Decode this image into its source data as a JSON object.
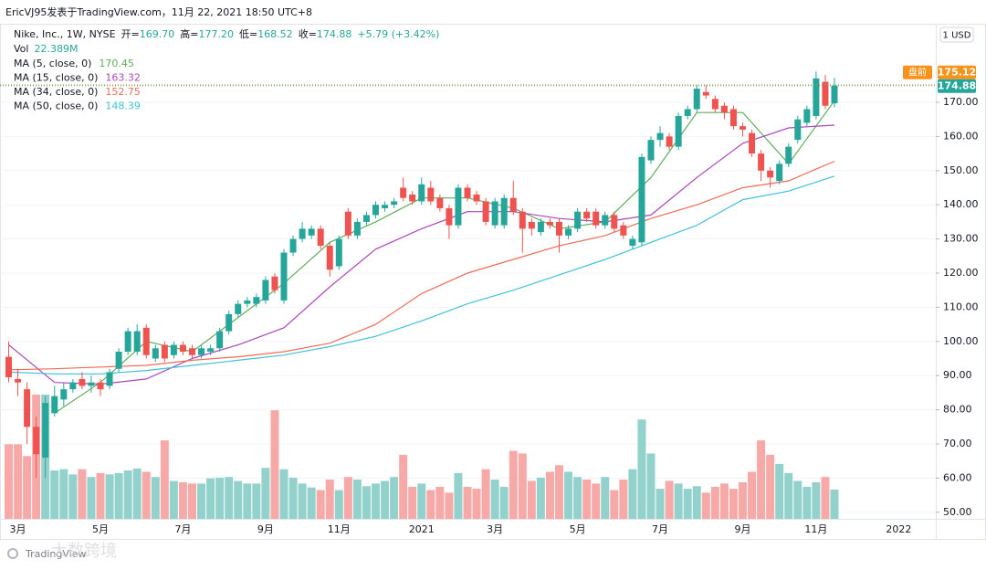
{
  "chart_data": {
    "type": "candlestick",
    "author_line": "EricVJ95发表于TradingView.com，11月 22, 2021 18:50 UTC+8",
    "symbol": "Nike, Inc., 1W, NYSE",
    "ohlc_legend": [
      {
        "label": "开=",
        "value": "169.70"
      },
      {
        "label": "高=",
        "value": "177.20"
      },
      {
        "label": "低=",
        "value": "168.52"
      },
      {
        "label": "收=",
        "value": "174.88"
      }
    ],
    "change": "+5.79 (+3.42%)",
    "volume_name": "Vol",
    "volume_label": "22.389M",
    "currency": "1 USD",
    "premarket_label": "盘前",
    "premarket_price": 175.12,
    "premarket_color": "#f7931a",
    "logo": "TradingView",
    "watermark": "大数跨境",
    "up_color": "#26a69a",
    "down_color": "#ef5350",
    "up_volume_color": "#93d2cc",
    "down_volume_color": "#f7a9a7",
    "grid": true,
    "categories": [
      null,
      "3月",
      null,
      null,
      null,
      null,
      null,
      null,
      null,
      null,
      "5月",
      null,
      null,
      null,
      null,
      null,
      null,
      null,
      null,
      "7月",
      null,
      null,
      null,
      null,
      null,
      null,
      null,
      null,
      "9月",
      null,
      null,
      null,
      null,
      null,
      null,
      null,
      "11月",
      null,
      null,
      null,
      null,
      null,
      null,
      null,
      null,
      "2021",
      null,
      null,
      null,
      null,
      null,
      null,
      null,
      "3月",
      null,
      null,
      null,
      null,
      null,
      null,
      null,
      null,
      "5月",
      null,
      null,
      null,
      null,
      null,
      null,
      null,
      null,
      "7月",
      null,
      null,
      null,
      null,
      null,
      null,
      null,
      null,
      "9月",
      null,
      null,
      null,
      null,
      null,
      null,
      null,
      "11月",
      null,
      null,
      null,
      null,
      null,
      null,
      null,
      null,
      "2022"
    ],
    "open": [
      95.5,
      89,
      86,
      75,
      66,
      79,
      83,
      86,
      89,
      87,
      88,
      87,
      92,
      97,
      97,
      104,
      95,
      99,
      96,
      99,
      98,
      96,
      97,
      98,
      103,
      108,
      111,
      111,
      112,
      119,
      112,
      126,
      130,
      131,
      133,
      128,
      122,
      138,
      131,
      135,
      137,
      139,
      140,
      145,
      143,
      141,
      145,
      142,
      139,
      134,
      145,
      143,
      141,
      134,
      134,
      142,
      138,
      135,
      132,
      135,
      135,
      131,
      133,
      138,
      138,
      134,
      137,
      134,
      128,
      129,
      153,
      159,
      160,
      157,
      166,
      168,
      173,
      171,
      169,
      168,
      163,
      161,
      155,
      150,
      147,
      152,
      159,
      164,
      166,
      176,
      169.7,
      null,
      null,
      null,
      null,
      null,
      null,
      null
    ],
    "high": [
      100,
      92,
      88,
      78,
      84,
      87,
      88,
      89,
      91,
      90,
      89,
      92,
      98,
      104,
      105,
      105,
      99,
      100,
      100,
      100,
      99,
      99,
      99,
      104,
      109,
      112,
      113,
      114,
      119,
      120,
      127,
      131,
      135,
      134,
      134,
      129,
      131,
      139,
      136,
      138,
      141,
      141,
      142,
      148,
      144,
      148,
      147,
      143,
      140,
      146,
      146,
      144,
      142,
      142,
      143,
      147,
      139,
      136,
      136,
      136,
      136,
      134,
      139,
      139,
      139,
      138,
      138,
      135,
      131,
      155,
      160,
      163,
      161,
      167,
      169,
      175,
      175,
      172,
      170,
      169,
      164,
      162,
      156,
      151,
      153,
      158,
      166,
      169,
      179,
      178,
      177.2,
      null,
      null,
      null,
      null,
      null,
      null,
      null
    ],
    "low": [
      88,
      84,
      70,
      60,
      60,
      78,
      81,
      85,
      86,
      85,
      84,
      86,
      91,
      96,
      96,
      95,
      94,
      94,
      95,
      96,
      95,
      95,
      96,
      97,
      102,
      107,
      110,
      110,
      111,
      114,
      111,
      125,
      129,
      130,
      127,
      119,
      121,
      130,
      130,
      134,
      136,
      138,
      139,
      141,
      140,
      140,
      140,
      138,
      130,
      133,
      141,
      140,
      134,
      133,
      133,
      137,
      126,
      131,
      131,
      133,
      126,
      130,
      132,
      135,
      133,
      133,
      132,
      130,
      127,
      128,
      152,
      157,
      156,
      156,
      165,
      167,
      171,
      167,
      165,
      162,
      160,
      154,
      147,
      145,
      146,
      151,
      158,
      163,
      165,
      168,
      168.52,
      null,
      null,
      null,
      null,
      null,
      null,
      null
    ],
    "close": [
      89.5,
      88,
      75,
      67,
      82,
      84,
      86,
      88,
      87,
      88,
      86,
      91,
      97,
      103,
      103,
      96,
      98,
      95,
      99,
      97,
      96,
      98,
      98,
      103,
      108,
      111,
      112,
      113,
      118,
      115,
      126,
      130,
      133,
      133,
      128,
      121,
      130,
      131,
      135,
      137,
      140,
      140,
      141,
      142,
      141,
      146,
      141,
      139,
      134,
      145,
      142,
      141,
      135,
      141,
      142,
      138,
      133,
      133,
      135,
      134,
      131,
      133,
      138,
      136,
      134,
      137,
      133,
      131,
      130,
      154,
      159,
      161,
      157,
      166,
      168,
      174,
      172,
      168,
      167,
      163,
      162,
      155,
      150,
      148,
      152,
      157,
      165,
      168,
      177,
      169,
      174.88,
      null,
      null,
      null,
      null,
      null,
      null,
      null
    ],
    "volume": [
      57,
      57,
      48,
      95,
      95,
      37,
      38,
      34,
      38,
      32,
      35,
      34,
      35,
      37,
      38.5,
      36,
      32,
      60,
      29,
      28,
      27,
      27,
      31,
      31.5,
      32,
      29,
      27,
      27,
      39,
      83,
      38,
      31.5,
      27,
      24,
      22,
      30,
      22,
      32,
      30,
      25,
      27,
      29,
      32,
      49,
      24.5,
      27,
      22,
      24.5,
      20,
      35,
      24.5,
      23,
      38,
      30,
      24.5,
      52,
      50,
      29,
      31.5,
      36,
      41,
      36,
      32,
      30,
      27,
      32,
      22,
      30,
      38,
      76,
      50,
      23,
      29,
      27,
      23,
      25,
      20,
      24.5,
      27,
      23,
      28,
      36,
      60,
      49,
      42,
      35,
      29,
      24.5,
      28,
      32,
      22.389,
      null,
      null,
      null,
      null,
      null,
      null,
      null
    ],
    "series": [
      {
        "name": "MA (5, close, 0)",
        "legend_value": "170.45",
        "color": "#5fae5a",
        "x": [
          0,
          5,
          10,
          15,
          20,
          25,
          30,
          35,
          40,
          45,
          50,
          55,
          60,
          65,
          70,
          75,
          80,
          85,
          90
        ],
        "values": [
          null,
          79,
          88,
          100,
          97,
          107,
          117,
          129,
          135,
          142,
          142,
          139,
          133,
          135,
          148,
          167,
          167,
          152,
          170.45
        ]
      },
      {
        "name": "MA (15, close, 0)",
        "legend_value": "163.32",
        "color": "#ab47bc",
        "x": [
          0,
          5,
          10,
          15,
          20,
          25,
          30,
          35,
          40,
          45,
          50,
          55,
          60,
          65,
          70,
          75,
          80,
          85,
          90
        ],
        "values": [
          99,
          88,
          87.5,
          89,
          95,
          99,
          104,
          116,
          127,
          133,
          138,
          138,
          136,
          135,
          137,
          148,
          158,
          162.5,
          163.32
        ]
      },
      {
        "name": "MA (34, close, 0)",
        "legend_value": "152.75",
        "color": "#ef6c57",
        "x": [
          0,
          5,
          10,
          15,
          20,
          25,
          30,
          35,
          40,
          45,
          50,
          55,
          60,
          65,
          70,
          75,
          80,
          85,
          90
        ],
        "values": [
          91.7,
          92,
          92.5,
          93,
          94.5,
          95.5,
          97,
          99.5,
          105,
          114,
          120,
          124,
          128,
          131,
          136,
          140,
          145,
          147,
          152.75
        ]
      },
      {
        "name": "MA (50, close, 0)",
        "legend_value": "148.39",
        "color": "#3fc2d6",
        "x": [
          0,
          5,
          10,
          15,
          20,
          25,
          30,
          35,
          40,
          45,
          50,
          55,
          60,
          65,
          70,
          75,
          80,
          85,
          90
        ],
        "values": [
          91,
          90.5,
          90.5,
          91.5,
          93,
          94.5,
          96,
          98.5,
          101.5,
          106,
          111,
          115,
          119.5,
          124,
          129,
          134,
          141.5,
          144,
          148.39
        ]
      }
    ],
    "ylim": [
      48.07,
      192.46
    ],
    "yticks": [
      {
        "value": 50,
        "label": "50.00"
      },
      {
        "value": 60,
        "label": "60.00"
      },
      {
        "value": 70,
        "label": "70.00"
      },
      {
        "value": 80,
        "label": "80.00"
      },
      {
        "value": 90,
        "label": "90.00"
      },
      {
        "value": 100,
        "label": "100.00"
      },
      {
        "value": 110,
        "label": "110.00"
      },
      {
        "value": 120,
        "label": "120.00"
      },
      {
        "value": 130,
        "label": "130.00"
      },
      {
        "value": 140,
        "label": "140.00"
      },
      {
        "value": 150,
        "label": "150.00"
      },
      {
        "value": 160,
        "label": "160.00"
      },
      {
        "value": 170,
        "label": "170.00"
      }
    ]
  }
}
